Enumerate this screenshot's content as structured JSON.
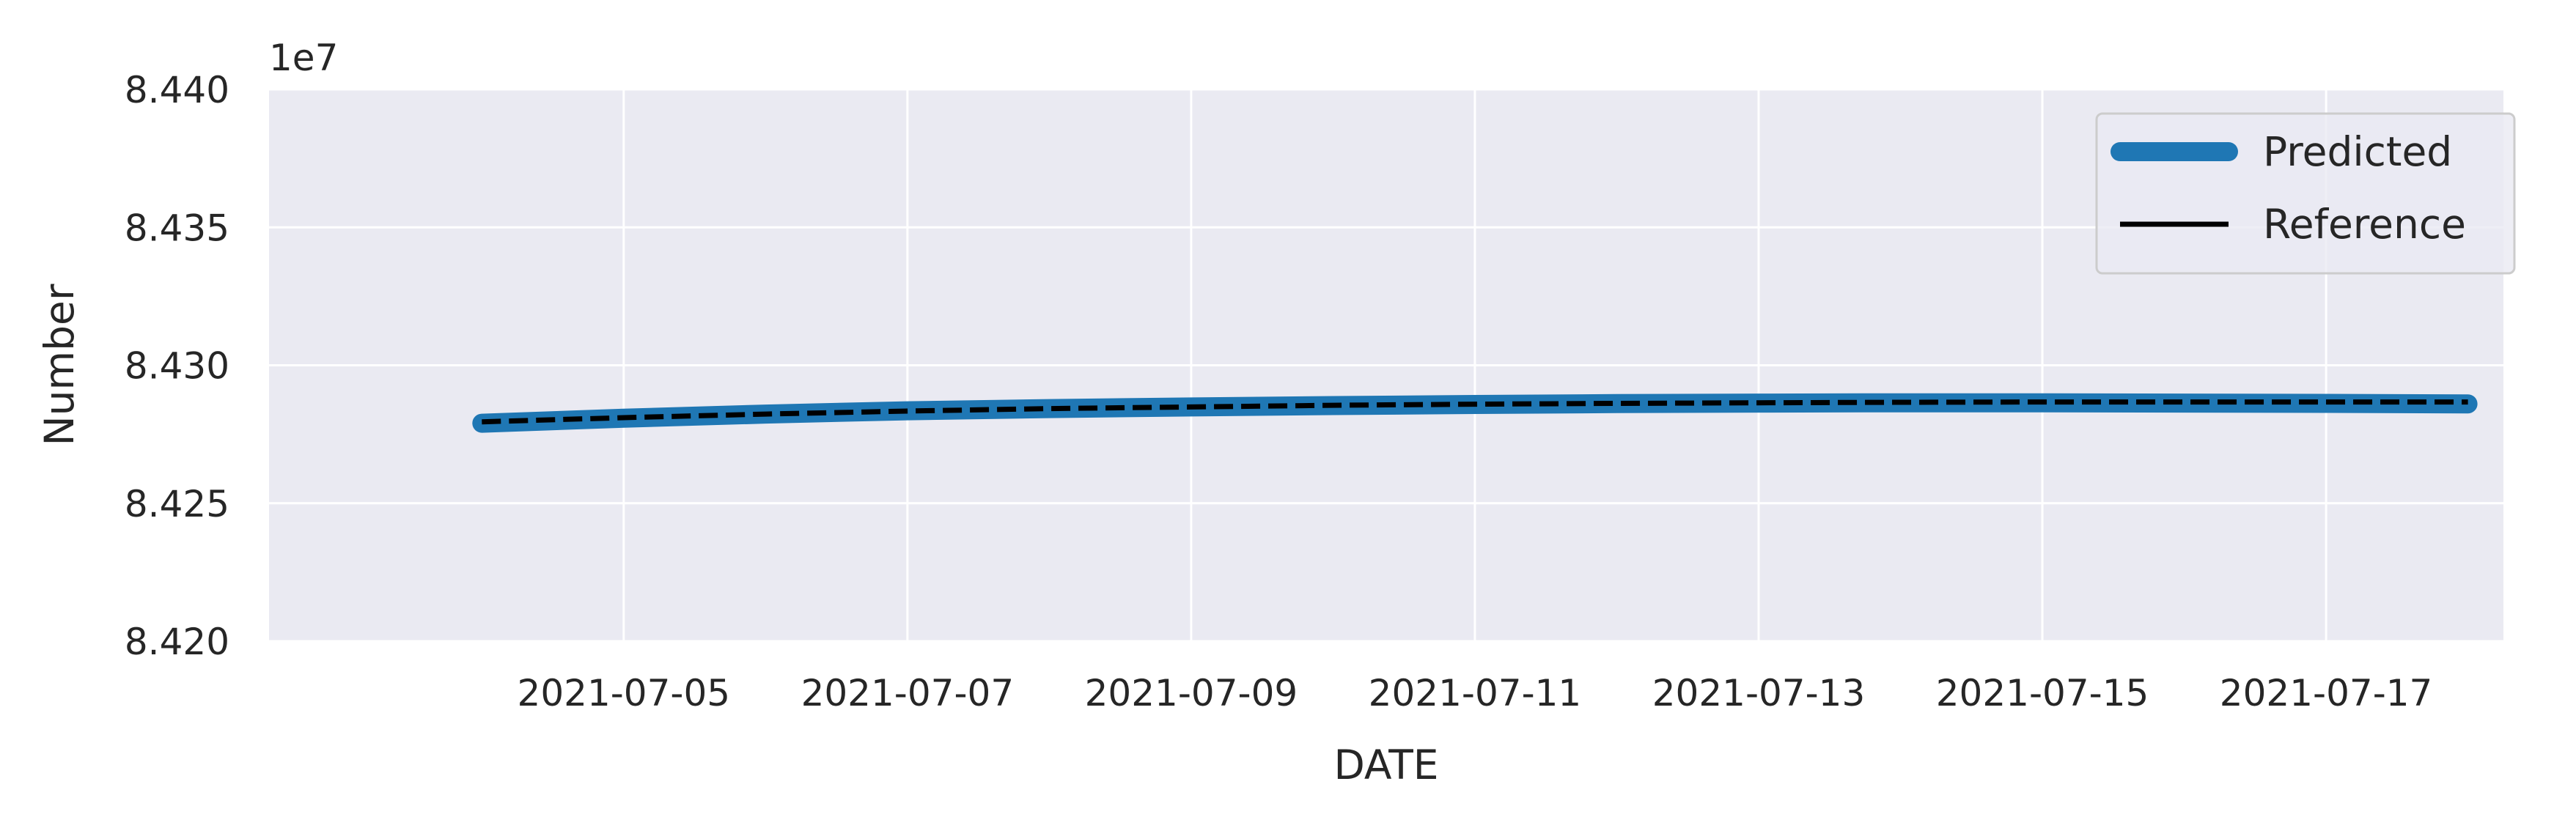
{
  "chart_data": {
    "type": "line",
    "xlabel": "DATE",
    "ylabel": "Number",
    "offset_label": "1e7",
    "x_ticks": [
      "2021-07-05",
      "2021-07-07",
      "2021-07-09",
      "2021-07-11",
      "2021-07-13",
      "2021-07-15",
      "2021-07-17"
    ],
    "x_range": [
      "2021-07-02 12:00",
      "2021-07-18 06:00"
    ],
    "y_ticks": [
      "8.420",
      "8.425",
      "8.430",
      "8.435",
      "8.440"
    ],
    "ylim": [
      84200000,
      84400000
    ],
    "grid": true,
    "legend_position": "top-right",
    "x": [
      "2021-07-04",
      "2021-07-05",
      "2021-07-06",
      "2021-07-07",
      "2021-07-08",
      "2021-07-09",
      "2021-07-10",
      "2021-07-11",
      "2021-07-12",
      "2021-07-13",
      "2021-07-14",
      "2021-07-15",
      "2021-07-16",
      "2021-07-17",
      "2021-07-18"
    ],
    "series": [
      {
        "name": "Predicted",
        "color": "#1f77b4",
        "style": "solid-thick",
        "values": [
          84279000,
          84280800,
          84282300,
          84283500,
          84284300,
          84284900,
          84285400,
          84285800,
          84286100,
          84286300,
          84286400,
          84286400,
          84286300,
          84286200,
          84286000
        ]
      },
      {
        "name": "Reference",
        "color": "#000000",
        "style": "dashed",
        "values": [
          84279500,
          84281000,
          84282300,
          84283400,
          84284300,
          84284900,
          84285500,
          84285900,
          84286200,
          84286400,
          84286600,
          84286700,
          84286700,
          84286700,
          84286700
        ]
      }
    ]
  }
}
